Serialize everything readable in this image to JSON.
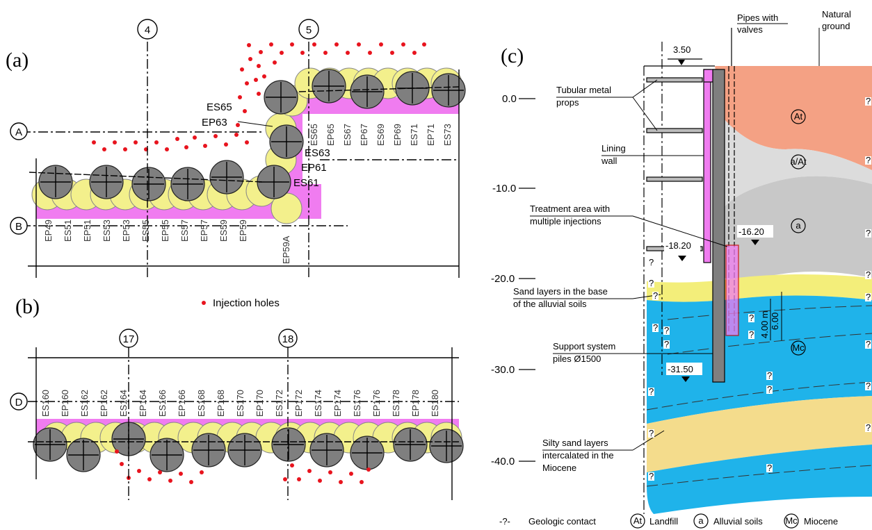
{
  "panels": {
    "a": "(a)",
    "b": "(b)",
    "c": "(c)"
  },
  "plan_a": {
    "grid_cols": [
      "4",
      "5"
    ],
    "grid_rows": [
      "A",
      "B"
    ],
    "pile_labels_lower": [
      "EP49",
      "ES51",
      "EP51",
      "ES53",
      "EP53",
      "ES55",
      "EP55",
      "ES57",
      "EP57",
      "ES59",
      "EP59"
    ],
    "pile_label_corner": "EP59A",
    "pile_labels_upper": [
      "ES65",
      "EP65",
      "ES67",
      "EP67",
      "ES69",
      "EP69",
      "ES71",
      "EP71",
      "ES73"
    ],
    "callouts": [
      "ES65",
      "EP63",
      "ES63",
      "EP61",
      "ES61"
    ]
  },
  "legend_injection": "Injection holes",
  "plan_b": {
    "grid_cols": [
      "17",
      "18"
    ],
    "grid_rows": [
      "D"
    ],
    "pile_labels": [
      "ES160",
      "EP160",
      "ES162",
      "EP162",
      "ES164",
      "EP164",
      "ES166",
      "EP166",
      "ES168",
      "EP168",
      "ES170",
      "EP170",
      "ES172",
      "EP172",
      "ES174",
      "EP174",
      "ES176",
      "EP176",
      "ES178",
      "EP178",
      "ES180"
    ]
  },
  "section_c": {
    "top_dim": "3.50",
    "header_pipes": "Pipes with\nvalves",
    "header_ground": "Natural\nground",
    "y_ticks": [
      "0.0",
      "-10.0",
      "-20.0",
      "-30.0",
      "-40.0"
    ],
    "callouts": {
      "props": "Tubular metal\nprops",
      "lining": "Lining\nwall",
      "treatment": "Treatment area with\nmultiple injections",
      "sand": "Sand layers in the base\nof the alluvial soils",
      "support": "Support system\npiles Ø1500",
      "silty": "Silty sand layers\nintercalated in the\nMiocene"
    },
    "levels": [
      "-16.20",
      "-18.20",
      "-31.50"
    ],
    "dim_side": "4.00 m",
    "dim_side2": "6.00",
    "soil_tags": [
      "At",
      "a/At",
      "a",
      "Mc"
    ],
    "question": "?"
  },
  "legend_c": {
    "contact_symbol": "-?-",
    "contact": "Geologic contact",
    "at_symbol": "At",
    "at": "Landfill",
    "a_symbol": "a",
    "a": "Alluvial soils",
    "mc_symbol": "Mc",
    "mc": "Miocene"
  },
  "colors": {
    "pile_gray": "#7f7f7f",
    "jet_yellow": "#f3f08c",
    "treat_pink": "#f07cf0",
    "injection_red": "#e8141e",
    "landfill_salmon": "#f4a184",
    "alluvial_gray": "#c8c8c8",
    "miocene_blue": "#1fb3ea",
    "silty_tan": "#f4dc8c"
  }
}
